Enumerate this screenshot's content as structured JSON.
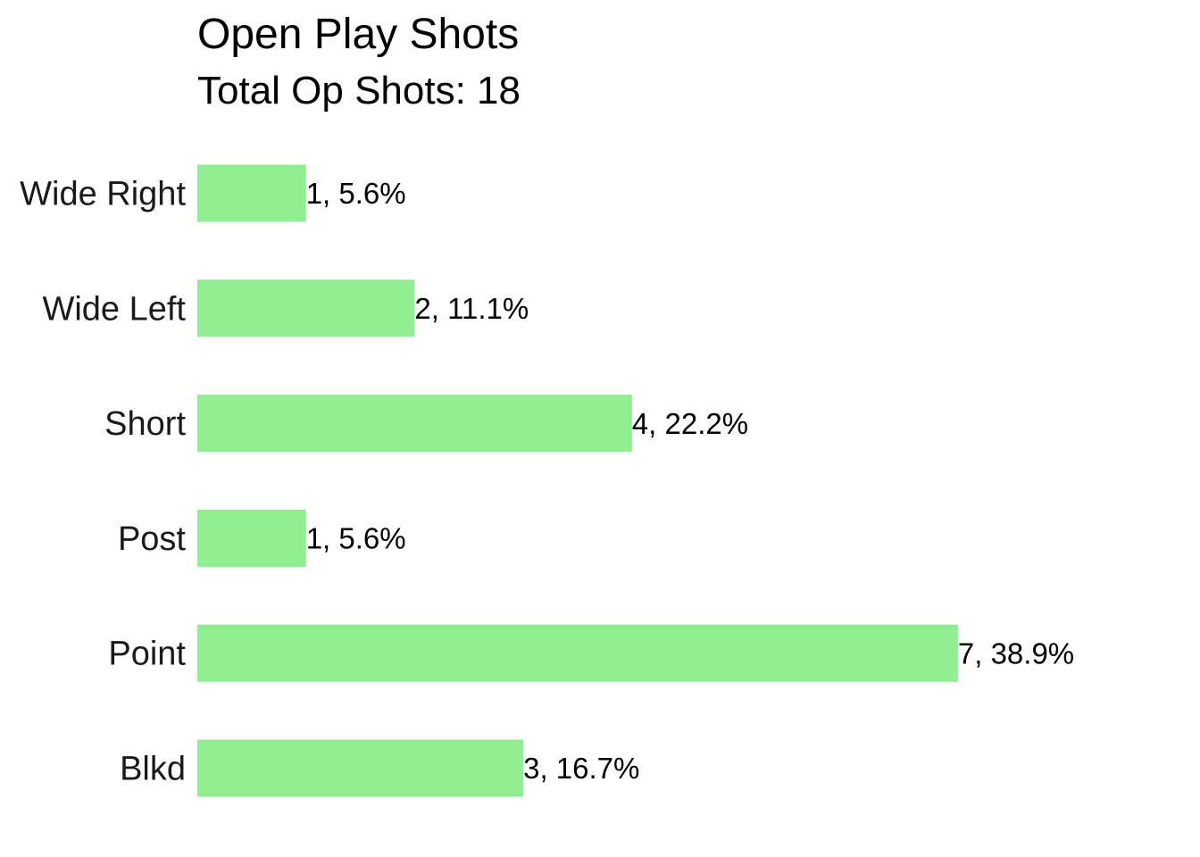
{
  "chart_data": {
    "type": "bar",
    "orientation": "horizontal",
    "title": "Open Play Shots",
    "subtitle": "Total Op Shots: 18",
    "xlabel": "",
    "ylabel": "",
    "categories": [
      "Wide Right",
      "Wide Left",
      "Short",
      "Post",
      "Point",
      "Blkd"
    ],
    "values": [
      1,
      2,
      4,
      1,
      7,
      3
    ],
    "data_labels": [
      "1, 5.6%",
      "2, 11.1%",
      "4, 22.2%",
      "1, 5.6%",
      "7, 38.9%",
      "3, 16.7%"
    ],
    "xlim": [
      0,
      7
    ],
    "grid": false,
    "legend": "none",
    "bar_color": "#90ee90"
  }
}
